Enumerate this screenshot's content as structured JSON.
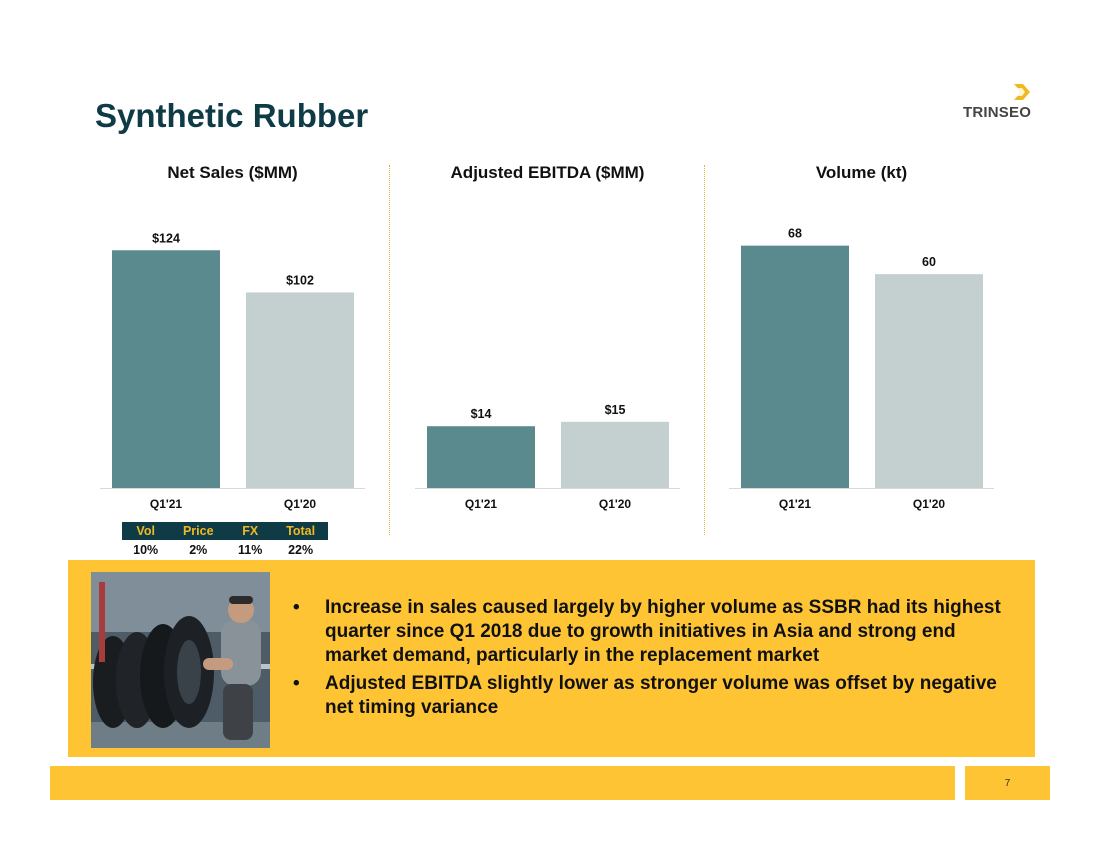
{
  "header": {
    "title": "Synthetic Rubber",
    "logo_text": "TRINSEO"
  },
  "colors": {
    "current": "#5a898e",
    "prior": "#c4cfd0",
    "navy": "#0f3b46",
    "gold": "#fec433",
    "divider": "#e3b23c"
  },
  "chart_data": [
    {
      "type": "bar",
      "title": "Net Sales ($MM)",
      "categories": [
        "Q1'21",
        "Q1'20"
      ],
      "values": [
        124,
        102
      ],
      "labels": [
        "$124",
        "$102"
      ],
      "ylim": [
        0,
        145
      ]
    },
    {
      "type": "bar",
      "title": "Adjusted EBITDA ($MM)",
      "categories": [
        "Q1'21",
        "Q1'20"
      ],
      "values": [
        14,
        15
      ],
      "labels": [
        "$14",
        "$15"
      ],
      "ylim": [
        0,
        63
      ]
    },
    {
      "type": "bar",
      "title": "Volume (kt)",
      "categories": [
        "Q1'21",
        "Q1'20"
      ],
      "values": [
        68,
        60
      ],
      "labels": [
        "68",
        "60"
      ],
      "ylim": [
        0,
        78
      ]
    }
  ],
  "sales_bridge": {
    "headers": [
      "Vol",
      "Price",
      "FX",
      "Total"
    ],
    "values": [
      "10%",
      "2%",
      "11%",
      "22%"
    ]
  },
  "panel": {
    "photo_icon": "tire-warehouse-photo",
    "bullet_glyph": "•",
    "bullets": [
      "Increase in sales caused largely by higher volume as SSBR had its highest quarter since Q1 2018 due to growth initiatives in Asia and strong end market demand, particularly in the replacement market",
      "Adjusted EBITDA slightly lower as stronger volume was offset by negative net timing variance"
    ]
  },
  "footer": {
    "page_number": "7"
  }
}
